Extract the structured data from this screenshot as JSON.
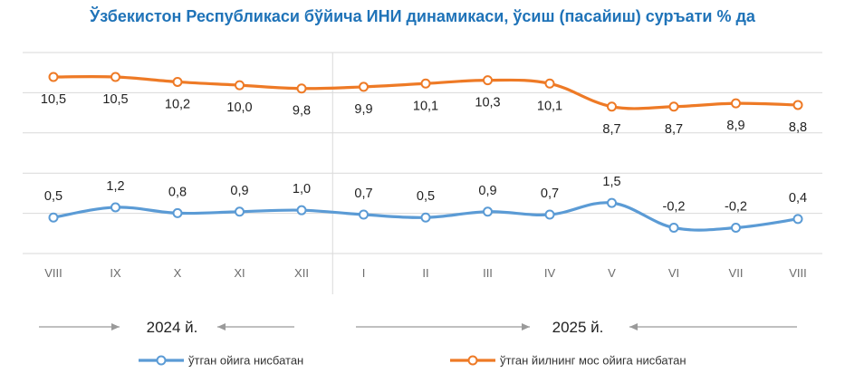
{
  "title": "Ўзбекистон Республикаси бўйича ИНИ динамикаси, ўсиш (пасайиш) суръати % да",
  "chart_data": {
    "type": "line",
    "title": "Ўзбекистон Республикаси бўйича ИНИ динамикаси, ўсиш (пасайиш) суръати % да",
    "categories": [
      "VIII",
      "IX",
      "X",
      "XI",
      "XII",
      "I",
      "II",
      "III",
      "IV",
      "V",
      "VI",
      "VII",
      "VIII"
    ],
    "series": [
      {
        "name": "ўтган йилнинг мос ойига нисбатан",
        "color": "#ee7a26",
        "values": [
          10.5,
          10.5,
          10.2,
          10.0,
          9.8,
          9.9,
          10.1,
          10.3,
          10.1,
          8.7,
          8.7,
          8.9,
          8.8
        ],
        "labels": [
          "10,5",
          "10,5",
          "10,2",
          "10,0",
          "9,8",
          "9,9",
          "10,1",
          "10,3",
          "10,1",
          "8,7",
          "8,7",
          "8,9",
          "8,8"
        ]
      },
      {
        "name": "ўтган ойига нисбатан",
        "color": "#5b9bd5",
        "values": [
          0.5,
          1.2,
          0.8,
          0.9,
          1.0,
          0.7,
          0.5,
          0.9,
          0.7,
          1.5,
          -0.2,
          -0.2,
          0.4
        ],
        "labels": [
          "0,5",
          "1,2",
          "0,8",
          "0,9",
          "1,0",
          "0,7",
          "0,5",
          "0,9",
          "0,7",
          "1,5",
          "-0,2",
          "-0,2",
          "0,4"
        ]
      }
    ],
    "years": [
      "2024 й.",
      "2025 й."
    ],
    "grid": true,
    "legend_position": "bottom"
  }
}
